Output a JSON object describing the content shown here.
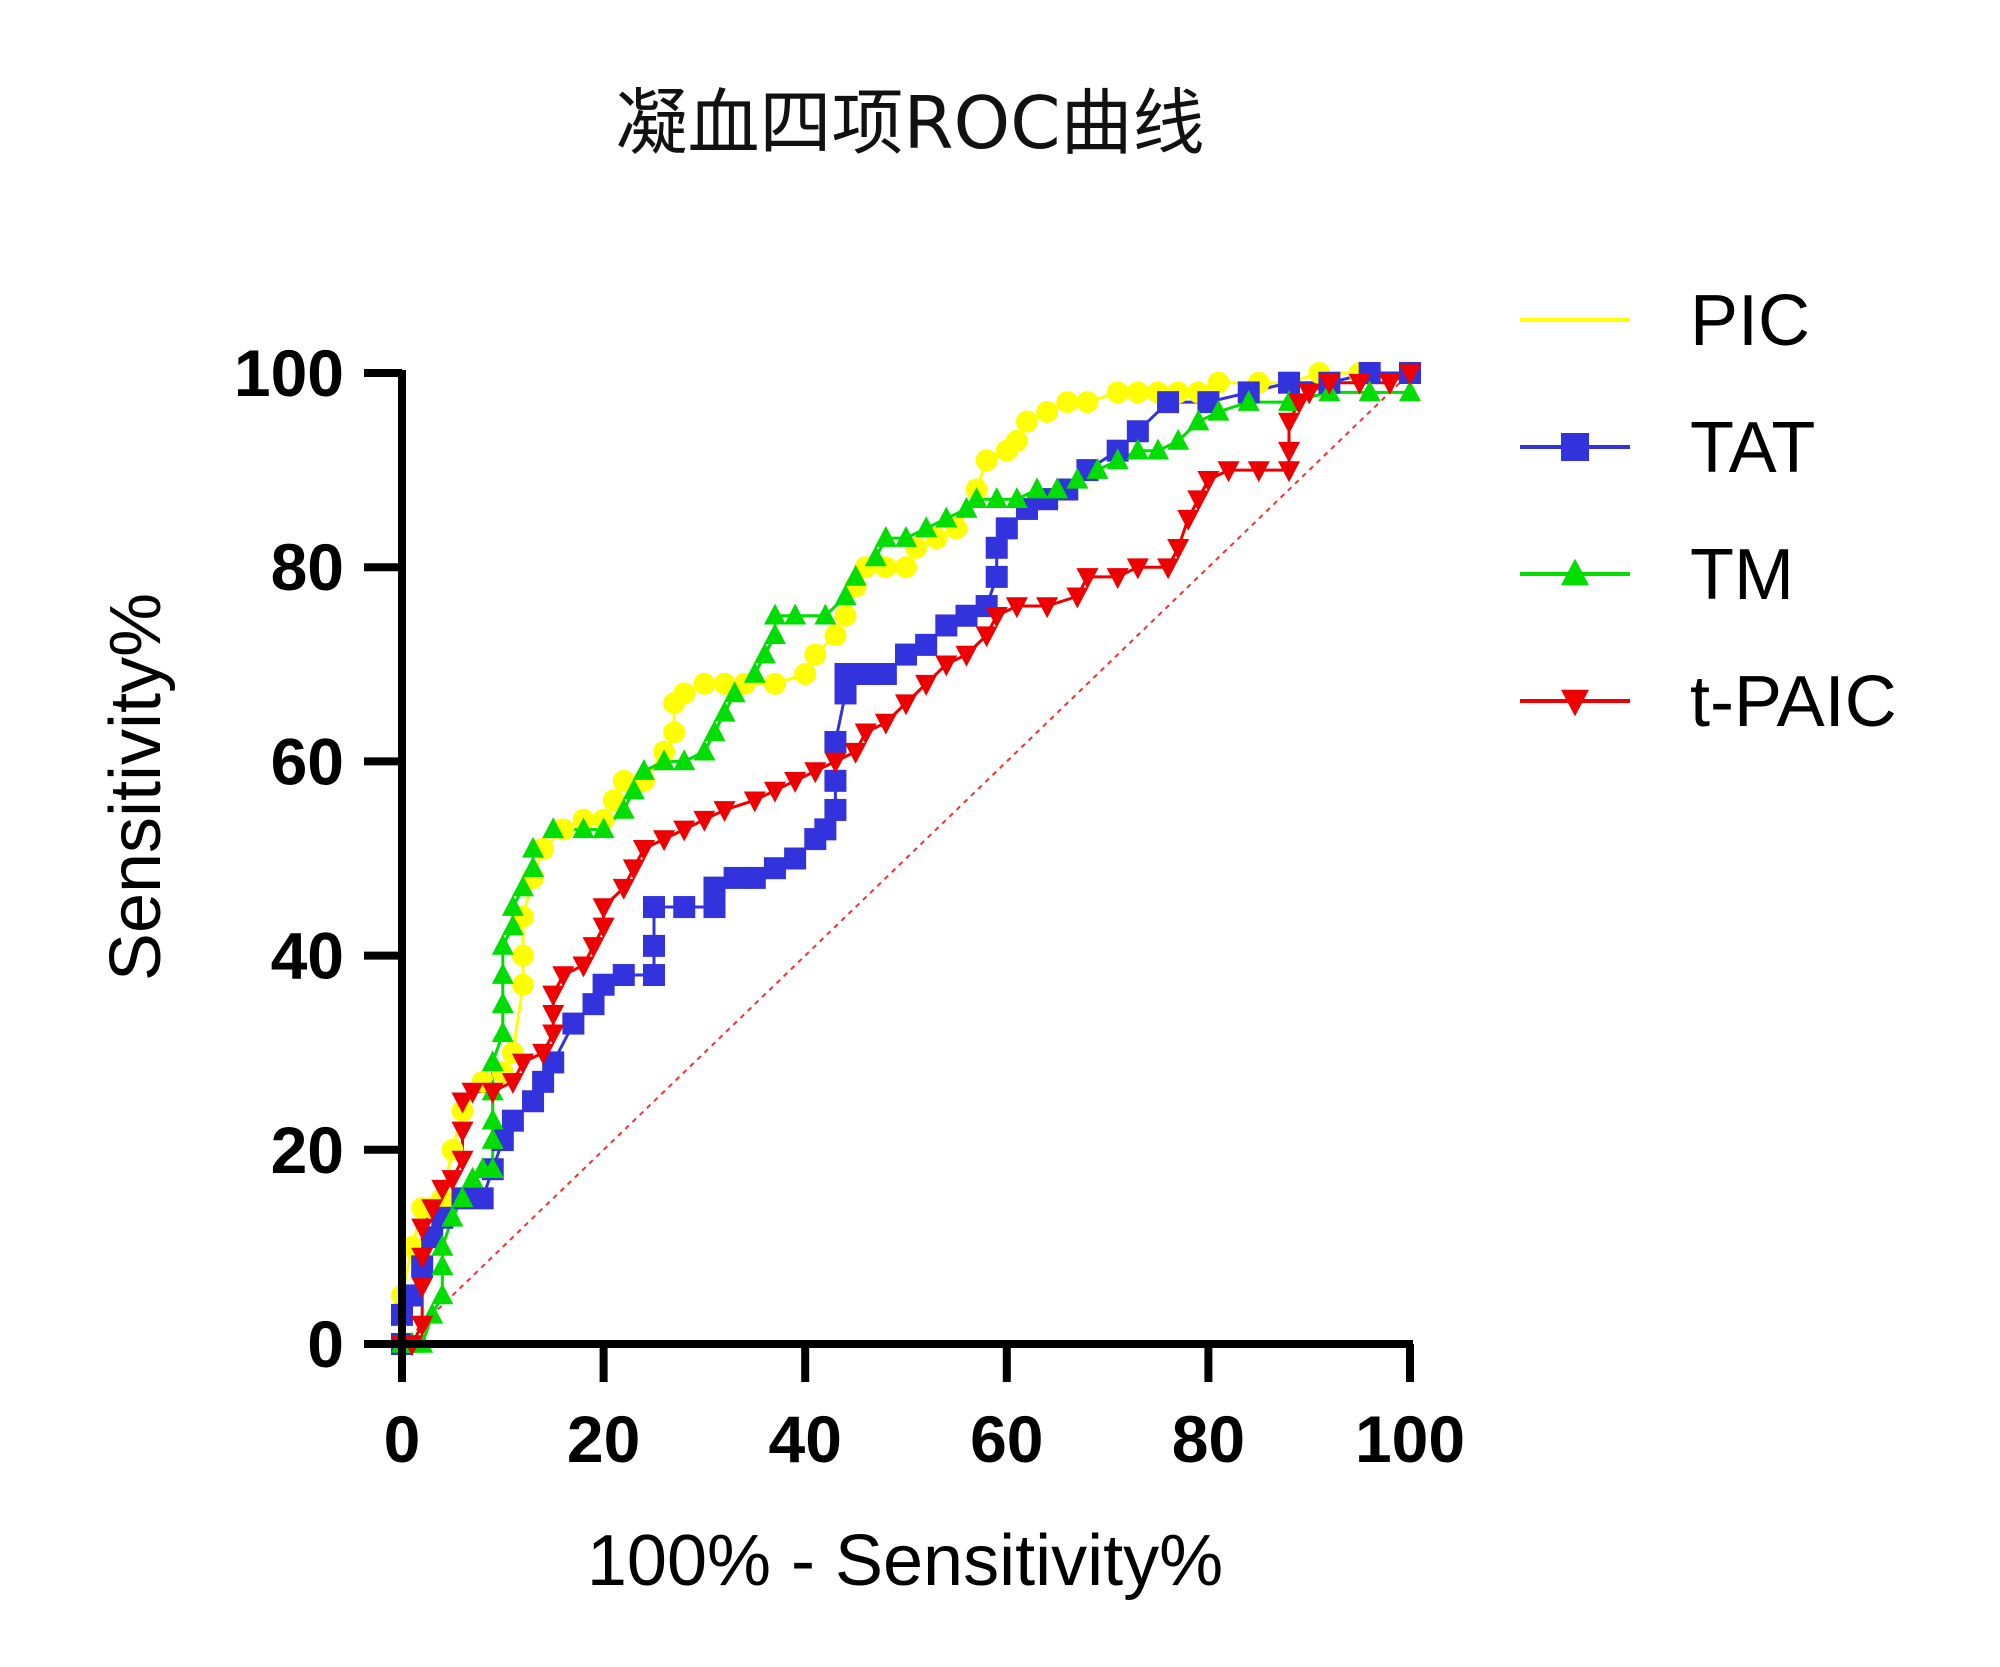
{
  "chart_data": {
    "type": "line",
    "title": "凝血四项ROC曲线",
    "xlabel": "100% - Sensitivity%",
    "ylabel": "Sensitivity%",
    "xlim": [
      0,
      100
    ],
    "ylim": [
      0,
      100
    ],
    "xticks": [
      "0",
      "20",
      "40",
      "60",
      "80",
      "100"
    ],
    "yticks": [
      "0",
      "20",
      "40",
      "60",
      "80",
      "100"
    ],
    "legend_position": "right",
    "reference_line": {
      "style": "dotted",
      "color": "#ee3333",
      "points": [
        [
          0,
          0
        ],
        [
          100,
          100
        ]
      ]
    },
    "series": [
      {
        "name": "PIC",
        "color": "#ffff00",
        "marker": "circle",
        "points": [
          [
            0,
            0
          ],
          [
            0,
            5
          ],
          [
            1,
            10
          ],
          [
            2,
            14
          ],
          [
            3,
            14
          ],
          [
            4,
            15
          ],
          [
            5,
            20
          ],
          [
            6,
            24
          ],
          [
            8,
            27
          ],
          [
            10,
            28
          ],
          [
            11,
            30
          ],
          [
            12,
            37
          ],
          [
            12,
            40
          ],
          [
            12,
            44
          ],
          [
            13,
            48
          ],
          [
            14,
            51
          ],
          [
            16,
            53
          ],
          [
            18,
            54
          ],
          [
            20,
            54
          ],
          [
            21,
            56
          ],
          [
            22,
            58
          ],
          [
            24,
            58
          ],
          [
            26,
            61
          ],
          [
            27,
            63
          ],
          [
            27,
            66
          ],
          [
            28,
            67
          ],
          [
            30,
            68
          ],
          [
            32,
            68
          ],
          [
            34,
            68
          ],
          [
            37,
            68
          ],
          [
            40,
            69
          ],
          [
            41,
            71
          ],
          [
            43,
            73
          ],
          [
            44,
            75
          ],
          [
            45,
            78
          ],
          [
            46,
            80
          ],
          [
            48,
            80
          ],
          [
            50,
            80
          ],
          [
            51,
            82
          ],
          [
            53,
            83
          ],
          [
            55,
            84
          ],
          [
            57,
            88
          ],
          [
            58,
            91
          ],
          [
            60,
            92
          ],
          [
            61,
            93
          ],
          [
            62,
            95
          ],
          [
            64,
            96
          ],
          [
            66,
            97
          ],
          [
            68,
            97
          ],
          [
            71,
            98
          ],
          [
            73,
            98
          ],
          [
            75,
            98
          ],
          [
            77,
            98
          ],
          [
            79,
            98
          ],
          [
            81,
            99
          ],
          [
            85,
            99
          ],
          [
            88,
            99
          ],
          [
            91,
            100
          ],
          [
            95,
            100
          ],
          [
            100,
            100
          ]
        ]
      },
      {
        "name": "TAT",
        "color": "#3333dd",
        "marker": "square",
        "points": [
          [
            0,
            0
          ],
          [
            0,
            3
          ],
          [
            1,
            5
          ],
          [
            2,
            8
          ],
          [
            3,
            11
          ],
          [
            4,
            13
          ],
          [
            6,
            15
          ],
          [
            8,
            15
          ],
          [
            9,
            18
          ],
          [
            10,
            21
          ],
          [
            11,
            23
          ],
          [
            13,
            25
          ],
          [
            14,
            27
          ],
          [
            15,
            29
          ],
          [
            17,
            33
          ],
          [
            19,
            35
          ],
          [
            20,
            37
          ],
          [
            22,
            38
          ],
          [
            25,
            38
          ],
          [
            25,
            41
          ],
          [
            25,
            45
          ],
          [
            28,
            45
          ],
          [
            31,
            45
          ],
          [
            31,
            47
          ],
          [
            33,
            48
          ],
          [
            35,
            48
          ],
          [
            37,
            49
          ],
          [
            39,
            50
          ],
          [
            41,
            52
          ],
          [
            42,
            53
          ],
          [
            43,
            55
          ],
          [
            43,
            58
          ],
          [
            43,
            62
          ],
          [
            44,
            67
          ],
          [
            44,
            69
          ],
          [
            46,
            69
          ],
          [
            48,
            69
          ],
          [
            50,
            71
          ],
          [
            52,
            72
          ],
          [
            54,
            74
          ],
          [
            56,
            75
          ],
          [
            58,
            76
          ],
          [
            59,
            79
          ],
          [
            59,
            82
          ],
          [
            60,
            84
          ],
          [
            62,
            86
          ],
          [
            64,
            87
          ],
          [
            66,
            88
          ],
          [
            68,
            90
          ],
          [
            71,
            92
          ],
          [
            73,
            94
          ],
          [
            76,
            97
          ],
          [
            80,
            97
          ],
          [
            84,
            98
          ],
          [
            88,
            99
          ],
          [
            92,
            99
          ],
          [
            96,
            100
          ],
          [
            100,
            100
          ]
        ]
      },
      {
        "name": "TM",
        "color": "#00dd00",
        "marker": "triangle-up",
        "points": [
          [
            0,
            0
          ],
          [
            1,
            0
          ],
          [
            2,
            0
          ],
          [
            3,
            3
          ],
          [
            4,
            5
          ],
          [
            4,
            8
          ],
          [
            4,
            10
          ],
          [
            5,
            13
          ],
          [
            6,
            15
          ],
          [
            7,
            17
          ],
          [
            8,
            18
          ],
          [
            9,
            18
          ],
          [
            9,
            21
          ],
          [
            9,
            23
          ],
          [
            9,
            26
          ],
          [
            9,
            29
          ],
          [
            10,
            32
          ],
          [
            10,
            35
          ],
          [
            10,
            38
          ],
          [
            10,
            41
          ],
          [
            11,
            43
          ],
          [
            11,
            45
          ],
          [
            12,
            47
          ],
          [
            13,
            49
          ],
          [
            13,
            51
          ],
          [
            15,
            53
          ],
          [
            18,
            53
          ],
          [
            20,
            53
          ],
          [
            22,
            55
          ],
          [
            23,
            57
          ],
          [
            24,
            59
          ],
          [
            26,
            60
          ],
          [
            28,
            60
          ],
          [
            30,
            61
          ],
          [
            31,
            63
          ],
          [
            32,
            65
          ],
          [
            33,
            67
          ],
          [
            35,
            69
          ],
          [
            36,
            71
          ],
          [
            37,
            73
          ],
          [
            37,
            75
          ],
          [
            39,
            75
          ],
          [
            42,
            75
          ],
          [
            44,
            77
          ],
          [
            45,
            79
          ],
          [
            47,
            81
          ],
          [
            48,
            83
          ],
          [
            50,
            83
          ],
          [
            52,
            84
          ],
          [
            54,
            85
          ],
          [
            56,
            86
          ],
          [
            57,
            87
          ],
          [
            59,
            87
          ],
          [
            61,
            87
          ],
          [
            63,
            88
          ],
          [
            65,
            88
          ],
          [
            67,
            89
          ],
          [
            69,
            90
          ],
          [
            71,
            91
          ],
          [
            73,
            92
          ],
          [
            75,
            92
          ],
          [
            77,
            93
          ],
          [
            79,
            95
          ],
          [
            81,
            96
          ],
          [
            84,
            97
          ],
          [
            88,
            97
          ],
          [
            92,
            98
          ],
          [
            96,
            98
          ],
          [
            100,
            98
          ]
        ]
      },
      {
        "name": "t-PAIC",
        "color": "#ee0000",
        "marker": "triangle-down",
        "points": [
          [
            0,
            0
          ],
          [
            1,
            0
          ],
          [
            2,
            2
          ],
          [
            2,
            6
          ],
          [
            2,
            9
          ],
          [
            2,
            12
          ],
          [
            3,
            14
          ],
          [
            4,
            16
          ],
          [
            5,
            17
          ],
          [
            6,
            19
          ],
          [
            6,
            22
          ],
          [
            6,
            25
          ],
          [
            7,
            26
          ],
          [
            9,
            26
          ],
          [
            11,
            27
          ],
          [
            12,
            29
          ],
          [
            14,
            30
          ],
          [
            15,
            32
          ],
          [
            15,
            34
          ],
          [
            15,
            36
          ],
          [
            16,
            38
          ],
          [
            18,
            39
          ],
          [
            19,
            41
          ],
          [
            20,
            43
          ],
          [
            20,
            45
          ],
          [
            22,
            47
          ],
          [
            23,
            49
          ],
          [
            24,
            51
          ],
          [
            26,
            52
          ],
          [
            28,
            53
          ],
          [
            30,
            54
          ],
          [
            32,
            55
          ],
          [
            35,
            56
          ],
          [
            37,
            57
          ],
          [
            39,
            58
          ],
          [
            41,
            59
          ],
          [
            43,
            60
          ],
          [
            45,
            61
          ],
          [
            46,
            63
          ],
          [
            48,
            64
          ],
          [
            50,
            66
          ],
          [
            52,
            68
          ],
          [
            54,
            70
          ],
          [
            56,
            71
          ],
          [
            58,
            73
          ],
          [
            59,
            75
          ],
          [
            61,
            76
          ],
          [
            64,
            76
          ],
          [
            67,
            77
          ],
          [
            68,
            79
          ],
          [
            71,
            79
          ],
          [
            73,
            80
          ],
          [
            76,
            80
          ],
          [
            77,
            82
          ],
          [
            78,
            85
          ],
          [
            79,
            87
          ],
          [
            80,
            89
          ],
          [
            82,
            90
          ],
          [
            85,
            90
          ],
          [
            88,
            90
          ],
          [
            88,
            92
          ],
          [
            88,
            95
          ],
          [
            89,
            97
          ],
          [
            90,
            98
          ],
          [
            92,
            99
          ],
          [
            95,
            99
          ],
          [
            98,
            99
          ],
          [
            100,
            100
          ]
        ]
      }
    ]
  }
}
